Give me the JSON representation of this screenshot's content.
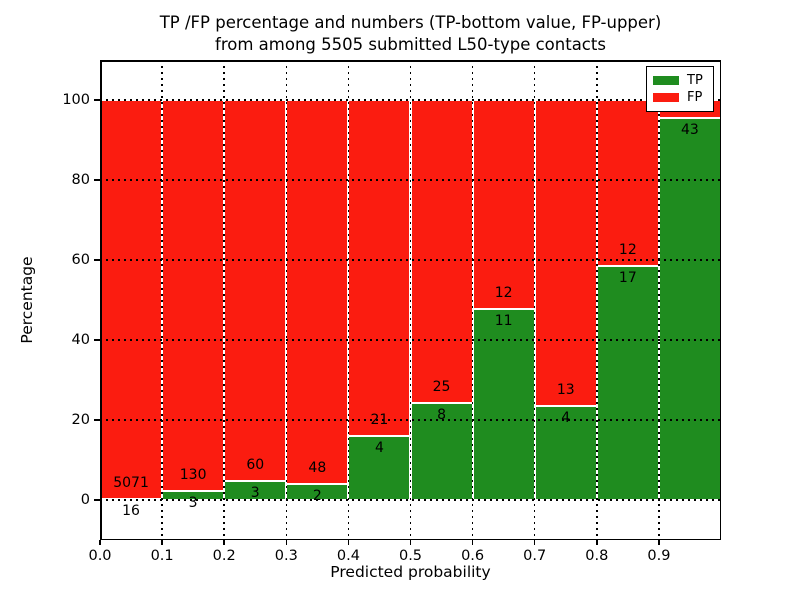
{
  "header": {
    "title_line1": "TP /FP percentage and numbers (TP-bottom value, FP-upper)",
    "title_line2": "from among 5505 submitted L50-type contacts"
  },
  "colors": {
    "tp": "#1f8c1f",
    "fp": "#fb1c10",
    "bar_edge": "#ffffff",
    "grid": "#000000",
    "text": "#000000"
  },
  "chart_data": {
    "type": "bar",
    "stacked": true,
    "normalized_to_percent": true,
    "title": "TP /FP percentage and numbers (TP-bottom value, FP-upper)\nfrom among 5505 submitted L50-type contacts",
    "xlabel": "Predicted probability",
    "ylabel": "Percentage",
    "xlim": [
      0.0,
      1.0
    ],
    "ylim": [
      -10,
      110
    ],
    "x_ticks": [
      "0.0",
      "0.1",
      "0.2",
      "0.3",
      "0.4",
      "0.5",
      "0.6",
      "0.7",
      "0.8",
      "0.9"
    ],
    "y_ticks": [
      "0",
      "20",
      "40",
      "60",
      "80",
      "100"
    ],
    "grid": "dotted, drawn over bars",
    "legend": {
      "position": "upper right",
      "entries": [
        {
          "label": "TP",
          "color": "#1f8c1f"
        },
        {
          "label": "FP",
          "color": "#fb1c10"
        }
      ]
    },
    "series": [
      {
        "name": "TP",
        "role": "bottom segment, green"
      },
      {
        "name": "FP",
        "role": "upper segment, red, stacks to 100%"
      }
    ],
    "bins": [
      {
        "x_range": [
          0.0,
          0.1
        ],
        "tp": 16,
        "fp": 5071,
        "tp_pct": 0.31,
        "tp_label": "16",
        "fp_label": "5071"
      },
      {
        "x_range": [
          0.1,
          0.2
        ],
        "tp": 3,
        "fp": 130,
        "tp_pct": 2.26,
        "tp_label": "3",
        "fp_label": "130"
      },
      {
        "x_range": [
          0.2,
          0.3
        ],
        "tp": 3,
        "fp": 60,
        "tp_pct": 4.76,
        "tp_label": "3",
        "fp_label": "60"
      },
      {
        "x_range": [
          0.3,
          0.4
        ],
        "tp": 2,
        "fp": 48,
        "tp_pct": 4.0,
        "tp_label": "2",
        "fp_label": "48"
      },
      {
        "x_range": [
          0.4,
          0.5
        ],
        "tp": 4,
        "fp": 21,
        "tp_pct": 16.0,
        "tp_label": "4",
        "fp_label": "21"
      },
      {
        "x_range": [
          0.5,
          0.6
        ],
        "tp": 8,
        "fp": 25,
        "tp_pct": 24.24,
        "tp_label": "8",
        "fp_label": "25"
      },
      {
        "x_range": [
          0.6,
          0.7
        ],
        "tp": 11,
        "fp": 12,
        "tp_pct": 47.83,
        "tp_label": "11",
        "fp_label": "12"
      },
      {
        "x_range": [
          0.7,
          0.8
        ],
        "tp": 4,
        "fp": 13,
        "tp_pct": 23.53,
        "tp_label": "4",
        "fp_label": "13"
      },
      {
        "x_range": [
          0.8,
          0.9
        ],
        "tp": 17,
        "fp": 12,
        "tp_pct": 58.62,
        "tp_label": "17",
        "fp_label": "12"
      },
      {
        "x_range": [
          0.9,
          1.0
        ],
        "tp": 43,
        "fp": null,
        "tp_pct": 95.56,
        "tp_label": "43",
        "fp_label": ""
      }
    ]
  }
}
